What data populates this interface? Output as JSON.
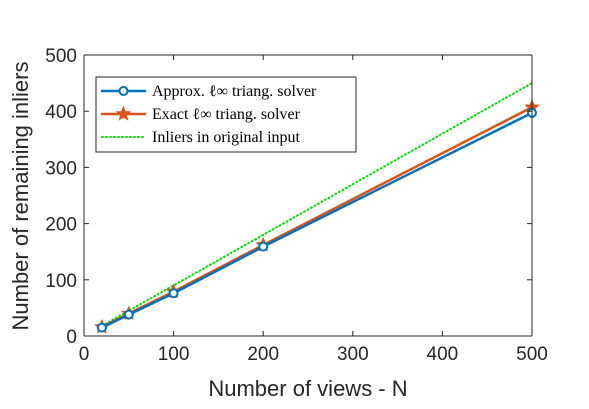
{
  "chart_data": {
    "type": "line",
    "xlabel": "Number of views - N",
    "ylabel": "Number of remaining inliers",
    "xlim": [
      0,
      500
    ],
    "ylim": [
      0,
      500
    ],
    "xticks": [
      0,
      100,
      200,
      300,
      400,
      500
    ],
    "yticks": [
      0,
      100,
      200,
      300,
      400,
      500
    ],
    "xtick_labels": [
      "0",
      "100",
      "200",
      "300",
      "400",
      "500"
    ],
    "ytick_labels": [
      "0",
      "100",
      "200",
      "300",
      "400",
      "500"
    ],
    "grid": false,
    "legend_position": "top-left",
    "series": [
      {
        "name": "Approx. ℓ∞ triang. solver",
        "color": "#0072BD",
        "marker": "circle",
        "line": "solid",
        "x": [
          20,
          50,
          100,
          200,
          500
        ],
        "y": [
          15,
          38,
          76,
          159,
          397
        ]
      },
      {
        "name": "Exact ℓ∞ triang. solver",
        "color": "#D95319",
        "marker": "star",
        "line": "solid",
        "x": [
          20,
          50,
          100,
          200,
          500
        ],
        "y": [
          16,
          40,
          79,
          162,
          407
        ]
      },
      {
        "name": "Inliers in original input",
        "color": "#00E000",
        "marker": "none",
        "line": "dotted",
        "x": [
          20,
          500
        ],
        "y": [
          18,
          450
        ]
      }
    ]
  }
}
